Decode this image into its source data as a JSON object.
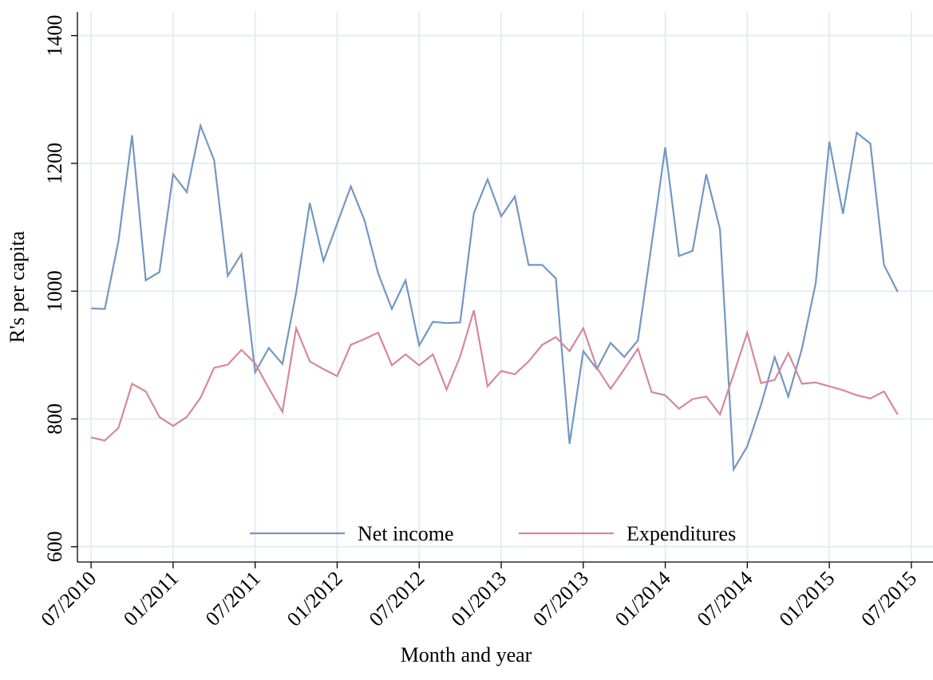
{
  "chart_data": {
    "type": "line",
    "x": [
      "2010-07",
      "2010-08",
      "2010-09",
      "2010-10",
      "2010-11",
      "2010-12",
      "2011-01",
      "2011-02",
      "2011-03",
      "2011-04",
      "2011-05",
      "2011-06",
      "2011-07",
      "2011-08",
      "2011-09",
      "2011-10",
      "2011-11",
      "2011-12",
      "2012-01",
      "2012-02",
      "2012-03",
      "2012-04",
      "2012-05",
      "2012-06",
      "2012-07",
      "2012-08",
      "2012-09",
      "2012-10",
      "2012-11",
      "2012-12",
      "2013-01",
      "2013-02",
      "2013-03",
      "2013-04",
      "2013-05",
      "2013-06",
      "2013-07",
      "2013-08",
      "2013-09",
      "2013-10",
      "2013-11",
      "2013-12",
      "2014-01",
      "2014-02",
      "2014-03",
      "2014-04",
      "2014-05",
      "2014-06",
      "2014-07",
      "2014-08",
      "2014-09",
      "2014-10",
      "2014-11",
      "2014-12",
      "2015-01",
      "2015-02",
      "2015-03",
      "2015-04",
      "2015-05",
      "2015-06"
    ],
    "series": [
      {
        "name": "Net income",
        "color": "#7397c2",
        "values": [
          973,
          972,
          1078,
          1244,
          1017,
          1030,
          1183,
          1155,
          1259,
          1205,
          1024,
          1058,
          873,
          911,
          886,
          998,
          1138,
          1047,
          1106,
          1164,
          1111,
          1028,
          972,
          1017,
          915,
          952,
          950,
          951,
          1122,
          1175,
          1117,
          1148,
          1041,
          1041,
          1020,
          761,
          906,
          878,
          919,
          897,
          923,
          1073,
          1225,
          1055,
          1063,
          1183,
          1097,
          721,
          757,
          822,
          897,
          835,
          910,
          1012,
          1234,
          1121,
          1248,
          1231,
          1041,
          999
        ]
      },
      {
        "name": "Expenditures",
        "color": "#d68899",
        "values": [
          771,
          766,
          786,
          855,
          843,
          803,
          789,
          803,
          833,
          880,
          885,
          908,
          887,
          848,
          811,
          942,
          890,
          878,
          867,
          916,
          925,
          935,
          884,
          901,
          884,
          901,
          846,
          898,
          970,
          851,
          875,
          870,
          890,
          916,
          928,
          906,
          942,
          880,
          847,
          878,
          910,
          842,
          837,
          816,
          831,
          835,
          807,
          870,
          935,
          856,
          861,
          903,
          855,
          857,
          851,
          845,
          837,
          832,
          843,
          807
        ]
      }
    ],
    "xlabel": "Month and year",
    "ylabel": "R's per capita",
    "xlim": [
      "2010-06",
      "2015-08"
    ],
    "xticks": [
      {
        "value": "2010-07",
        "label": "07/2010"
      },
      {
        "value": "2011-01",
        "label": "01/2011"
      },
      {
        "value": "2011-07",
        "label": "07/2011"
      },
      {
        "value": "2012-01",
        "label": "01/2012"
      },
      {
        "value": "2012-07",
        "label": "07/2012"
      },
      {
        "value": "2013-01",
        "label": "01/2013"
      },
      {
        "value": "2013-07",
        "label": "07/2013"
      },
      {
        "value": "2014-01",
        "label": "01/2014"
      },
      {
        "value": "2014-07",
        "label": "07/2014"
      },
      {
        "value": "2015-01",
        "label": "01/2015"
      },
      {
        "value": "2015-07",
        "label": "07/2015"
      }
    ],
    "ylim": [
      576,
      1437
    ],
    "yticks": [
      600,
      800,
      1000,
      1200,
      1400
    ],
    "grid": true,
    "legend": "bottom"
  }
}
